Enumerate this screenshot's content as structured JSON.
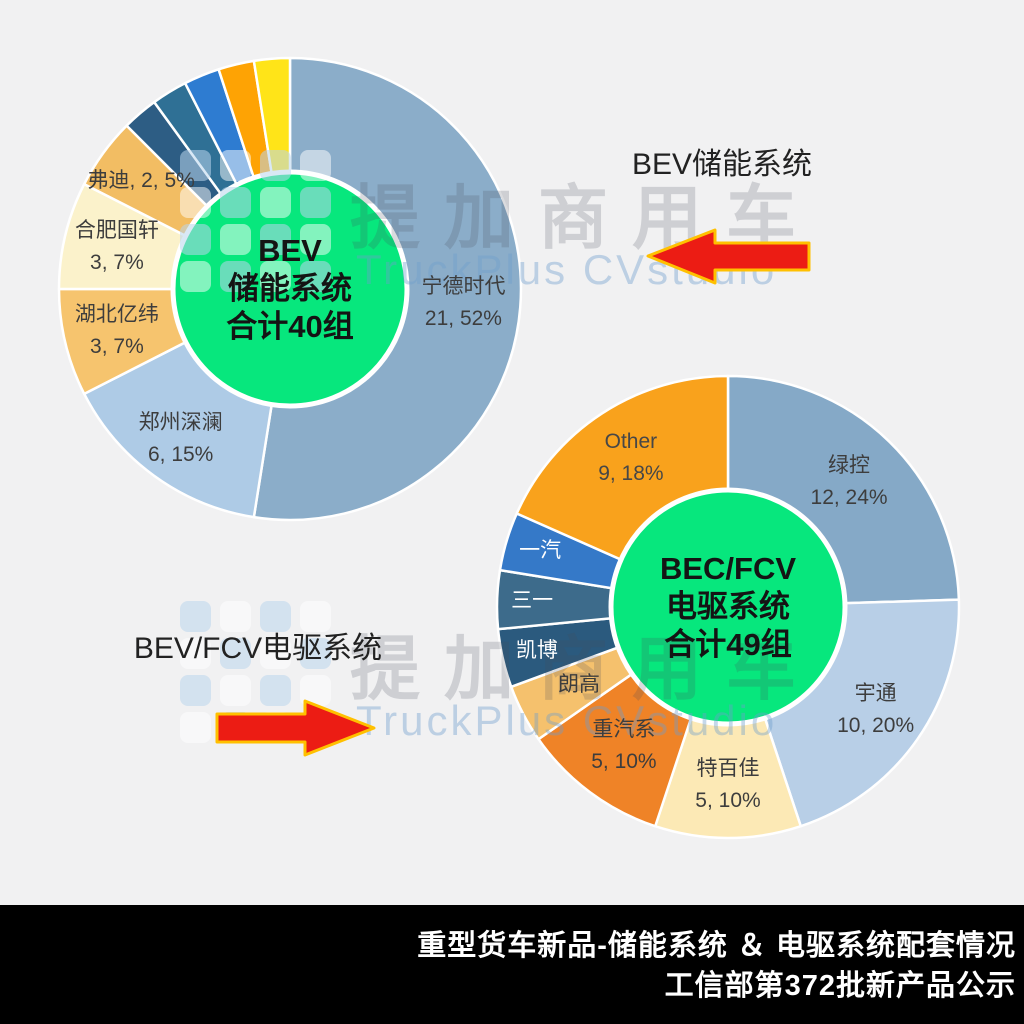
{
  "page": {
    "background": "#f1f1f2",
    "watermark": {
      "brand_cn": "提加商用车",
      "brand_en": "TruckPlus CVstudio",
      "logo": "truckplus-tile-logo",
      "cn_color": "#b9bac0",
      "en_color": "#c3d6e7"
    },
    "arrow": {
      "fill": "#ec1c14",
      "stroke": "#ffc000"
    },
    "footer": {
      "line1": "重型货车新品-储能系统 ＆ 电驱系统配套情况",
      "line2": "工信部第372批新产品公示",
      "bg": "#000000",
      "color": "#ffffff"
    }
  },
  "annotations": {
    "chart1_title": "BEV储能系统",
    "chart2_title": "BEV/FCV电驱系统"
  },
  "chart_data": [
    {
      "type": "pie",
      "variant": "donut",
      "title": "BEV储能系统",
      "total": 40,
      "center_lines": [
        "BEV",
        "储能系统",
        "合计40组"
      ],
      "center_bg": "#07e77d",
      "legend_position": "labels-on-slices",
      "segments": [
        {
          "name": "宁德时代",
          "value": 21,
          "pct": "52%",
          "color": "#8badc9",
          "label_lines": [
            "宁德时代",
            "21, 52%"
          ],
          "label_r": 174,
          "label_color": "#3d3d3d"
        },
        {
          "name": "郑州深澜",
          "value": 6,
          "pct": "15%",
          "color": "#aecbe6",
          "label_lines": [
            "郑州深澜",
            "6, 15%"
          ],
          "label_r": 186,
          "label_color": "#3d3d3d"
        },
        {
          "name": "湖北亿纬",
          "value": 3,
          "pct": "7%",
          "color": "#f6c46e",
          "label_lines": [
            "湖北亿纬",
            "3, 7%"
          ],
          "label_r": 178,
          "label_color": "#3d3d3d"
        },
        {
          "name": "合肥国轩",
          "value": 3,
          "pct": "7%",
          "color": "#fbf2cb",
          "label_lines": [
            "合肥国轩",
            "3, 7%"
          ],
          "label_r": 178,
          "label_color": "#3d3d3d"
        },
        {
          "name": "弗迪",
          "value": 2,
          "pct": "5%",
          "color": "#f2bd63",
          "label_lines": [
            "弗迪, 2, 5%"
          ],
          "label_r": 184,
          "label_color": "#3d3d3d"
        },
        {
          "name": "",
          "value": 1,
          "color": "#2d5d84",
          "label_lines": []
        },
        {
          "name": "",
          "value": 1,
          "color": "#2f7095",
          "label_lines": []
        },
        {
          "name": "",
          "value": 1,
          "color": "#2e7cd1",
          "label_lines": []
        },
        {
          "name": "",
          "value": 1,
          "color": "#fea304",
          "label_lines": []
        },
        {
          "name": "",
          "value": 1,
          "color": "#ffe418",
          "label_lines": []
        }
      ]
    },
    {
      "type": "pie",
      "variant": "donut",
      "title": "BEV/FCV电驱系统",
      "total": 49,
      "center_lines": [
        "BEC/FCV",
        "电驱系统",
        "合计49组"
      ],
      "center_bg": "#07e77d",
      "legend_position": "labels-on-slices",
      "segments": [
        {
          "name": "绿控",
          "value": 12,
          "pct": "24%",
          "color": "#85a9c7",
          "label_lines": [
            "绿控",
            "12, 24%"
          ],
          "label_r": 174,
          "label_color": "#3d3d3d"
        },
        {
          "name": "宇通",
          "value": 10,
          "pct": "20%",
          "color": "#b8cfe7",
          "label_lines": [
            "宇通",
            "10, 20%"
          ],
          "label_r": 180,
          "label_color": "#3d3d3d"
        },
        {
          "name": "特百佳",
          "value": 5,
          "pct": "10%",
          "color": "#fce9b5",
          "label_lines": [
            "特百佳",
            "5, 10%"
          ],
          "label_r": 178,
          "label_color": "#3d3d3d"
        },
        {
          "name": "重汽系",
          "value": 5,
          "pct": "10%",
          "color": "#ef8327",
          "label_lines": [
            "重汽系",
            "5, 10%"
          ],
          "label_r": 174,
          "label_color": "#3d3d3d"
        },
        {
          "name": "朗高",
          "value": 2,
          "pct": "4%",
          "color": "#f5c16d",
          "label_lines": [
            "朗高"
          ],
          "label_r": 168,
          "label_color": "#3d3d3d"
        },
        {
          "name": "凯博",
          "value": 2,
          "pct": "4%",
          "color": "#2b5a7e",
          "label_lines": [
            "凯博"
          ],
          "label_r": 196,
          "label_color": "#ffffff"
        },
        {
          "name": "三一",
          "value": 2,
          "pct": "4%",
          "color": "#3d6b8b",
          "label_lines": [
            "三一"
          ],
          "label_r": 196,
          "label_color": "#ffffff"
        },
        {
          "name": "一汽",
          "value": 2,
          "pct": "4%",
          "color": "#3579c8",
          "label_lines": [
            "一汽"
          ],
          "label_r": 196,
          "label_color": "#ffffff"
        },
        {
          "name": "Other",
          "value": 9,
          "pct": "18%",
          "color": "#f9a21c",
          "label_lines": [
            "Other",
            "9, 18%"
          ],
          "label_r": 178,
          "label_color": "#474747"
        }
      ]
    }
  ]
}
